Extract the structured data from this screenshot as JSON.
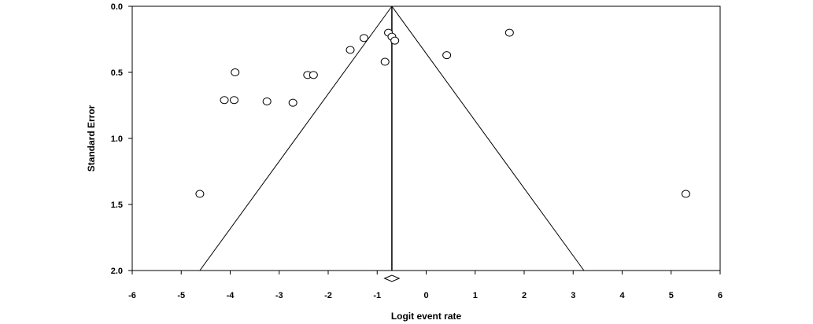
{
  "chart_data": {
    "type": "scatter",
    "subtype": "funnel-plot",
    "title": "",
    "xlabel": "Logit event rate",
    "ylabel": "Standard Error",
    "xlim": [
      -6,
      6
    ],
    "ylim": [
      0,
      2
    ],
    "y_inverted": true,
    "x_ticks": [
      -6,
      -5,
      -4,
      -3,
      -2,
      -1,
      0,
      1,
      2,
      3,
      4,
      5,
      6
    ],
    "x_tick_labels": [
      "-6",
      "-5",
      "-4",
      "-3",
      "-2",
      "-1",
      "0",
      "1",
      "2",
      "3",
      "4",
      "5",
      "6"
    ],
    "y_ticks": [
      0,
      0.5,
      1,
      1.5,
      2
    ],
    "y_tick_labels": [
      "0.0",
      "0.5",
      "1.0",
      "1.5",
      "2.0"
    ],
    "grid": false,
    "legend": "none",
    "marker": "open-circle",
    "points": [
      {
        "x": -4.62,
        "y": 1.42
      },
      {
        "x": -4.12,
        "y": 0.71
      },
      {
        "x": -3.92,
        "y": 0.71
      },
      {
        "x": -3.9,
        "y": 0.5
      },
      {
        "x": -3.25,
        "y": 0.72
      },
      {
        "x": -2.72,
        "y": 0.73
      },
      {
        "x": -2.42,
        "y": 0.52
      },
      {
        "x": -2.3,
        "y": 0.52
      },
      {
        "x": -1.55,
        "y": 0.33
      },
      {
        "x": -1.27,
        "y": 0.24
      },
      {
        "x": -0.84,
        "y": 0.42
      },
      {
        "x": -0.77,
        "y": 0.2
      },
      {
        "x": -0.7,
        "y": 0.23
      },
      {
        "x": -0.64,
        "y": 0.26
      },
      {
        "x": 0.42,
        "y": 0.37
      },
      {
        "x": 1.7,
        "y": 0.2
      },
      {
        "x": 5.3,
        "y": 1.42
      }
    ],
    "summary_estimate": -0.7,
    "funnel": {
      "apex": {
        "x": -0.7,
        "y": 0
      },
      "left_base": {
        "x": -4.62,
        "y": 2
      },
      "right_base": {
        "x": 3.22,
        "y": 2
      }
    },
    "summary_diamond": {
      "x_low": -0.85,
      "x_high": -0.55
    }
  }
}
